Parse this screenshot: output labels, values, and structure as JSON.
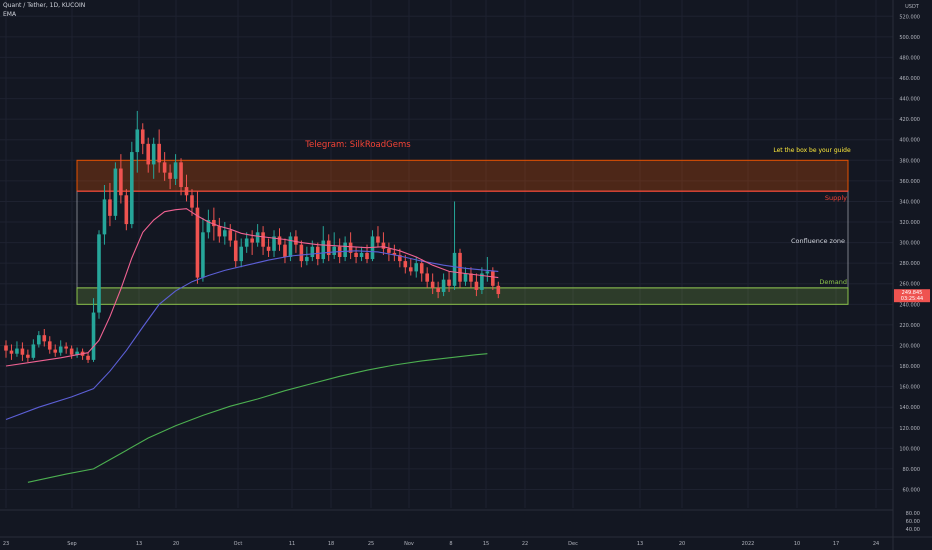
{
  "header": {
    "symbol": "Quant / Tether, 1D, KUCOIN",
    "indicator": "EMA"
  },
  "chart_data": {
    "type": "candlestick",
    "currency": "USDT",
    "x_ticks": [
      "23",
      "Sep",
      "13",
      "20",
      "Oct",
      "11",
      "18",
      "25",
      "Nov",
      "8",
      "15",
      "22",
      "Dec",
      "13",
      "20",
      "2022",
      "10",
      "17",
      "24"
    ],
    "y_ticks": [
      60,
      80,
      100,
      120,
      140,
      160,
      180,
      200,
      220,
      240,
      260,
      280,
      300,
      320,
      340,
      360,
      380,
      400,
      420,
      440,
      460,
      480,
      500,
      520
    ],
    "ylim": [
      42,
      530
    ],
    "last_price": "249.845",
    "countdown": "03:25:44",
    "candles": [
      [
        0,
        200,
        195,
        205,
        188
      ],
      [
        1,
        195,
        192,
        201,
        186
      ],
      [
        2,
        192,
        197,
        204,
        189
      ],
      [
        3,
        197,
        191,
        203,
        185
      ],
      [
        4,
        191,
        188,
        196,
        184
      ],
      [
        5,
        188,
        201,
        206,
        186
      ],
      [
        6,
        201,
        210,
        214,
        198
      ],
      [
        7,
        210,
        204,
        216,
        199
      ],
      [
        8,
        204,
        196,
        209,
        192
      ],
      [
        9,
        196,
        193,
        201,
        189
      ],
      [
        10,
        193,
        199,
        205,
        190
      ],
      [
        11,
        199,
        197,
        203,
        192
      ],
      [
        12,
        197,
        191,
        200,
        187
      ],
      [
        13,
        191,
        194,
        198,
        188
      ],
      [
        14,
        194,
        190,
        197,
        186
      ],
      [
        15,
        190,
        186,
        193,
        183
      ],
      [
        16,
        186,
        232,
        246,
        184
      ],
      [
        17,
        232,
        308,
        312,
        226
      ],
      [
        18,
        308,
        342,
        356,
        298
      ],
      [
        19,
        342,
        326,
        358,
        316
      ],
      [
        20,
        326,
        372,
        378,
        322
      ],
      [
        21,
        372,
        346,
        386,
        338
      ],
      [
        22,
        346,
        318,
        352,
        312
      ],
      [
        23,
        318,
        388,
        398,
        314
      ],
      [
        24,
        388,
        410,
        428,
        368
      ],
      [
        25,
        410,
        396,
        416,
        386
      ],
      [
        26,
        396,
        376,
        402,
        368
      ],
      [
        27,
        376,
        396,
        402,
        362
      ],
      [
        28,
        396,
        378,
        410,
        368
      ],
      [
        29,
        378,
        368,
        388,
        360
      ],
      [
        30,
        368,
        362,
        376,
        352
      ],
      [
        31,
        362,
        378,
        386,
        356
      ],
      [
        32,
        378,
        354,
        382,
        346
      ],
      [
        33,
        354,
        346,
        366,
        340
      ],
      [
        34,
        346,
        334,
        352,
        326
      ],
      [
        35,
        334,
        266,
        350,
        260
      ],
      [
        36,
        266,
        310,
        324,
        262
      ],
      [
        37,
        310,
        322,
        332,
        304
      ],
      [
        38,
        322,
        316,
        334,
        302
      ],
      [
        39,
        316,
        306,
        324,
        300
      ],
      [
        40,
        306,
        312,
        320,
        298
      ],
      [
        41,
        312,
        302,
        318,
        296
      ],
      [
        42,
        302,
        282,
        310,
        276
      ],
      [
        43,
        282,
        296,
        304,
        276
      ],
      [
        44,
        296,
        304,
        310,
        290
      ],
      [
        45,
        304,
        300,
        312,
        288
      ],
      [
        46,
        300,
        310,
        318,
        296
      ],
      [
        47,
        310,
        296,
        316,
        288
      ],
      [
        48,
        296,
        292,
        304,
        286
      ],
      [
        49,
        292,
        306,
        312,
        286
      ],
      [
        50,
        306,
        298,
        314,
        292
      ],
      [
        51,
        298,
        286,
        304,
        280
      ],
      [
        52,
        286,
        306,
        310,
        282
      ],
      [
        53,
        306,
        298,
        312,
        290
      ],
      [
        54,
        298,
        282,
        302,
        276
      ],
      [
        55,
        282,
        286,
        296,
        278
      ],
      [
        56,
        286,
        296,
        302,
        282
      ],
      [
        57,
        296,
        284,
        300,
        278
      ],
      [
        58,
        284,
        302,
        316,
        280
      ],
      [
        59,
        302,
        288,
        308,
        282
      ],
      [
        60,
        288,
        296,
        310,
        284
      ],
      [
        61,
        296,
        286,
        304,
        280
      ],
      [
        62,
        286,
        300,
        306,
        282
      ],
      [
        63,
        300,
        290,
        310,
        284
      ],
      [
        64,
        290,
        286,
        296,
        280
      ],
      [
        65,
        286,
        290,
        296,
        282
      ],
      [
        66,
        290,
        284,
        298,
        280
      ],
      [
        67,
        284,
        306,
        312,
        282
      ],
      [
        68,
        306,
        300,
        316,
        296
      ],
      [
        69,
        300,
        294,
        310,
        288
      ],
      [
        70,
        294,
        290,
        300,
        282
      ],
      [
        71,
        290,
        288,
        298,
        282
      ],
      [
        72,
        288,
        282,
        294,
        276
      ],
      [
        73,
        282,
        276,
        288,
        270
      ],
      [
        74,
        276,
        272,
        284,
        268
      ],
      [
        75,
        272,
        280,
        286,
        266
      ],
      [
        76,
        280,
        270,
        284,
        262
      ],
      [
        77,
        270,
        262,
        276,
        256
      ],
      [
        78,
        262,
        256,
        270,
        250
      ],
      [
        79,
        256,
        252,
        262,
        246
      ],
      [
        80,
        252,
        264,
        270,
        248
      ],
      [
        81,
        264,
        258,
        272,
        252
      ],
      [
        82,
        258,
        290,
        340,
        254
      ],
      [
        83,
        290,
        262,
        294,
        256
      ],
      [
        84,
        262,
        270,
        276,
        258
      ],
      [
        85,
        270,
        262,
        276,
        256
      ],
      [
        86,
        262,
        254,
        270,
        248
      ],
      [
        87,
        254,
        270,
        276,
        250
      ],
      [
        88,
        270,
        272,
        286,
        262
      ],
      [
        89,
        272,
        258,
        276,
        254
      ],
      [
        90,
        258,
        250,
        262,
        246
      ]
    ],
    "ema_short": [
      [
        0,
        180
      ],
      [
        5,
        184
      ],
      [
        10,
        188
      ],
      [
        15,
        193
      ],
      [
        17,
        205
      ],
      [
        19,
        228
      ],
      [
        21,
        255
      ],
      [
        23,
        285
      ],
      [
        25,
        310
      ],
      [
        27,
        322
      ],
      [
        29,
        330
      ],
      [
        31,
        332
      ],
      [
        33,
        333
      ],
      [
        35,
        326
      ],
      [
        37,
        320
      ],
      [
        39,
        316
      ],
      [
        41,
        313
      ],
      [
        43,
        309
      ],
      [
        45,
        307
      ],
      [
        48,
        305
      ],
      [
        51,
        303
      ],
      [
        54,
        300
      ],
      [
        57,
        298
      ],
      [
        60,
        297
      ],
      [
        63,
        296
      ],
      [
        66,
        295
      ],
      [
        69,
        296
      ],
      [
        72,
        292
      ],
      [
        75,
        286
      ],
      [
        78,
        278
      ],
      [
        81,
        272
      ],
      [
        84,
        270
      ],
      [
        87,
        268
      ],
      [
        90,
        266
      ]
    ],
    "ema_mid": [
      [
        0,
        128
      ],
      [
        6,
        140
      ],
      [
        12,
        150
      ],
      [
        16,
        158
      ],
      [
        19,
        175
      ],
      [
        22,
        195
      ],
      [
        25,
        218
      ],
      [
        28,
        240
      ],
      [
        31,
        253
      ],
      [
        34,
        262
      ],
      [
        37,
        268
      ],
      [
        40,
        273
      ],
      [
        44,
        278
      ],
      [
        48,
        283
      ],
      [
        52,
        287
      ],
      [
        56,
        289
      ],
      [
        60,
        291
      ],
      [
        64,
        292
      ],
      [
        68,
        291
      ],
      [
        72,
        287
      ],
      [
        76,
        282
      ],
      [
        80,
        278
      ],
      [
        84,
        275
      ],
      [
        88,
        273
      ],
      [
        90,
        272
      ]
    ],
    "ema_long": [
      [
        4,
        67
      ],
      [
        11,
        75
      ],
      [
        16,
        80
      ],
      [
        21,
        95
      ],
      [
        26,
        110
      ],
      [
        31,
        122
      ],
      [
        36,
        132
      ],
      [
        41,
        141
      ],
      [
        46,
        148
      ],
      [
        51,
        156
      ],
      [
        56,
        163
      ],
      [
        61,
        170
      ],
      [
        66,
        176
      ],
      [
        71,
        181
      ],
      [
        76,
        185
      ],
      [
        81,
        188
      ],
      [
        86,
        191
      ],
      [
        88,
        192
      ]
    ],
    "zones": [
      {
        "name": "Let the box be your guide",
        "low": 350,
        "high": 380,
        "color": "#e65100"
      },
      {
        "name": "Supply",
        "low": 349,
        "high": 350,
        "color": "#f44336"
      },
      {
        "name": "Confluence zone",
        "low": 256,
        "high": 350,
        "color": "#d1d4dc"
      },
      {
        "name": "Demand",
        "low": 240,
        "high": 256,
        "color": "#8bc34a"
      }
    ],
    "annotations": [
      "Telegram: SilkRoadGems"
    ],
    "sub_ticks": [
      "80.00",
      "60.00",
      "40.00"
    ],
    "colors": {
      "up": "#26a69a",
      "down": "#ef5350",
      "ema_short": "#f06292",
      "ema_mid": "#5c5fd6",
      "ema_long": "#4caf50",
      "bg": "#131722",
      "grid": "#1e2230",
      "text": "#b2b5be"
    }
  }
}
